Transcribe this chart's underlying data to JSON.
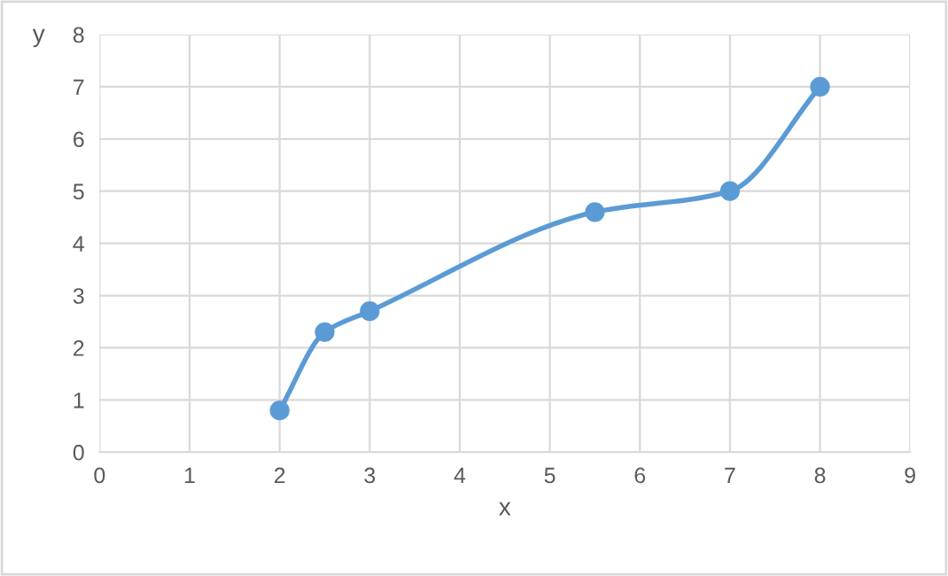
{
  "chart_data": {
    "type": "line",
    "xlabel": "x",
    "ylabel": "y",
    "x": [
      2,
      2.5,
      3,
      5.5,
      7,
      8
    ],
    "series": [
      {
        "color": "#5b9bd5",
        "values": [
          0.8,
          2.3,
          2.7,
          4.6,
          5.0,
          7.0
        ]
      }
    ],
    "xlim": [
      0,
      9
    ],
    "xticks": [
      0,
      1,
      2,
      3,
      4,
      5,
      6,
      7,
      8,
      9
    ],
    "ylim": [
      0,
      8
    ],
    "yticks": [
      0,
      1,
      2,
      3,
      4,
      5,
      6,
      7,
      8
    ],
    "grid": true,
    "marker": "circle",
    "line_style": "solid"
  }
}
